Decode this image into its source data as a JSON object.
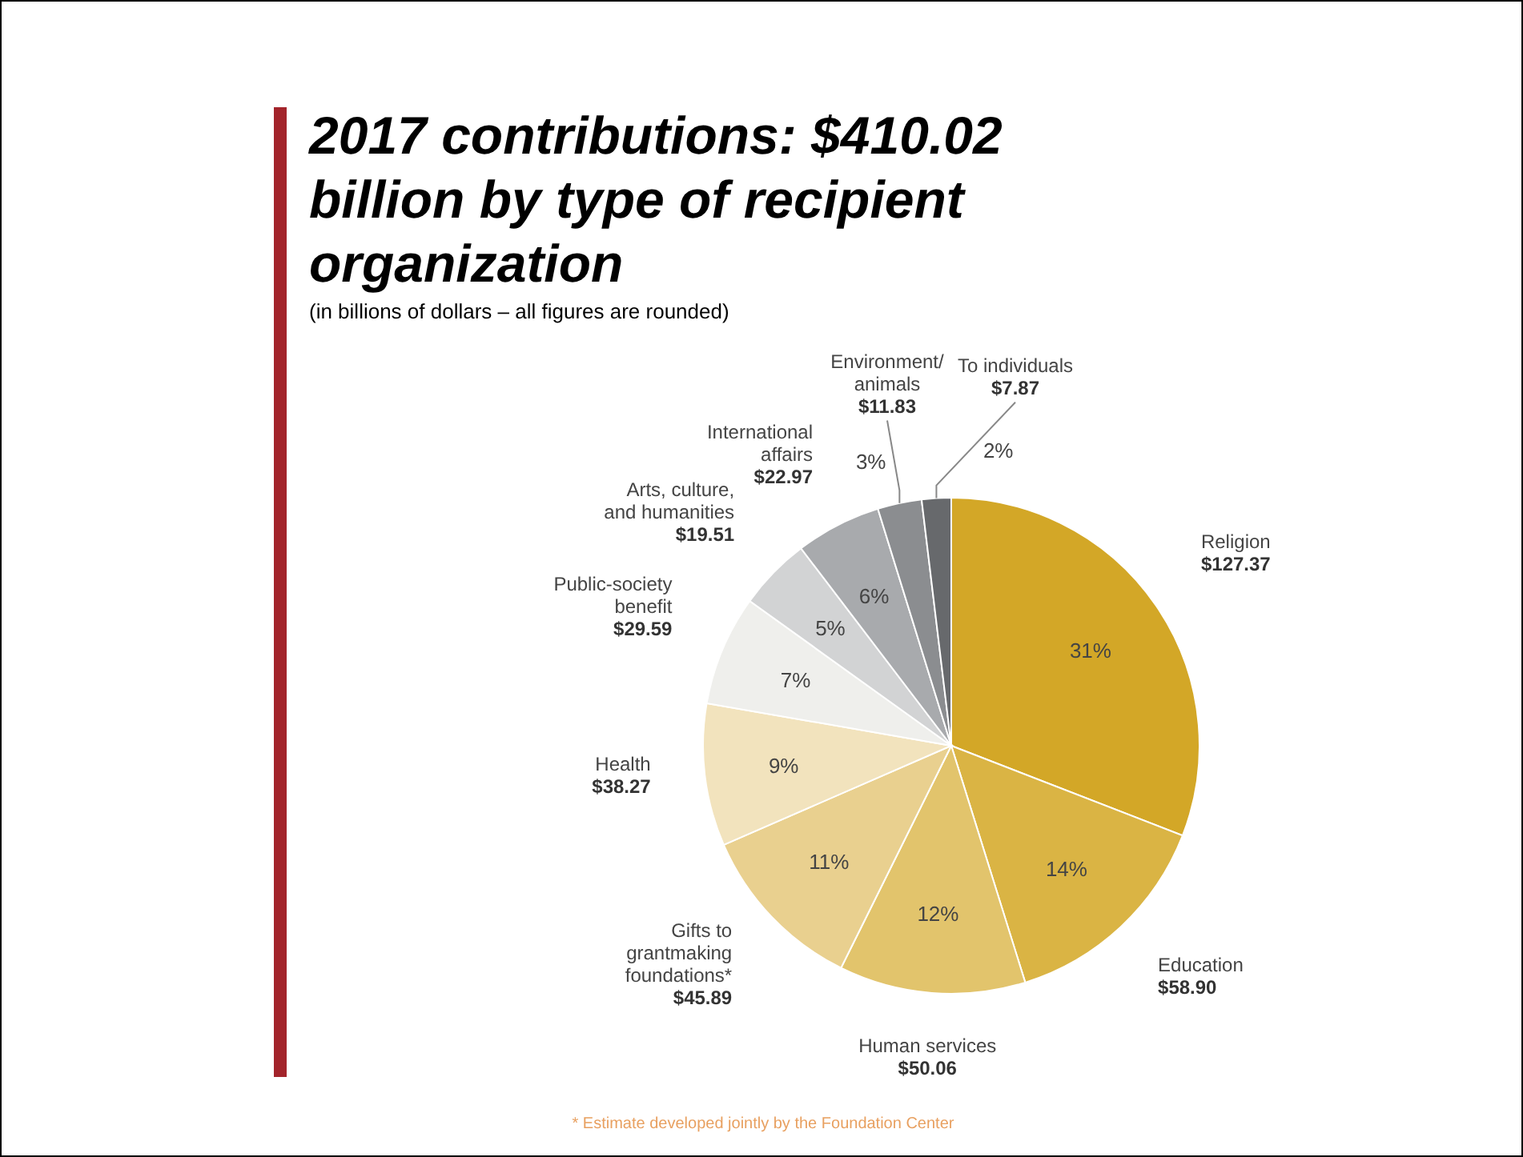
{
  "chart_data": {
    "type": "pie",
    "title": "2017 contributions: $410.02 billion by type of recipient organization",
    "subtitle": "(in billions of dollars – all figures are rounded)",
    "categories": [
      "Religion",
      "Education",
      "Human services",
      "Gifts to grantmaking foundations*",
      "Health",
      "Public-society benefit",
      "Arts, culture, and humanities",
      "International affairs",
      "Environment/ animals",
      "To individuals"
    ],
    "values": [
      127.37,
      58.9,
      50.06,
      45.89,
      38.27,
      29.59,
      19.51,
      22.97,
      11.83,
      7.87
    ],
    "value_labels": [
      "$127.37",
      "$58.90",
      "$50.06",
      "$45.89",
      "$38.27",
      "$29.59",
      "$19.51",
      "$22.97",
      "$11.83",
      "$7.87"
    ],
    "colors": [
      "#d3a727",
      "#dab444",
      "#e2c46c",
      "#e9d08f",
      "#f2e3bd",
      "#efefec",
      "#d2d3d4",
      "#a8aaad",
      "#8b8d90",
      "#67696c"
    ],
    "annotations": [
      {
        "text": "31%",
        "x": "Religion"
      },
      {
        "text": "14%",
        "x": "Education"
      },
      {
        "text": "12%",
        "x": "Human services"
      },
      {
        "text": "11%",
        "x": "Gifts to grantmaking foundations*"
      },
      {
        "text": "9%",
        "x": "Health"
      },
      {
        "text": "7%",
        "x": "Public-society benefit"
      },
      {
        "text": "5%",
        "x": "Arts, culture, and humanities"
      },
      {
        "text": "6%",
        "x": "International affairs"
      },
      {
        "text": "3%",
        "x": "Environment/ animals"
      },
      {
        "text": "2%",
        "x": "To individuals"
      },
      "* Estimate developed jointly by the Foundation Center"
    ],
    "legend": false
  }
}
